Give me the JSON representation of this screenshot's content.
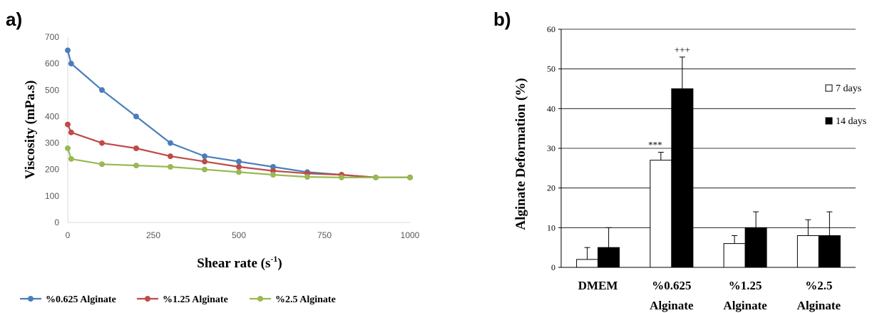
{
  "chart_data": [
    {
      "panel_label": "a)",
      "type": "line",
      "xlabel": "Shear rate (s",
      "xlabel_sup": "-1",
      "xlabel_tail": ")",
      "ylabel": "Viscosity (mPa.s)",
      "xlim": [
        0,
        1000
      ],
      "ylim": [
        0,
        700
      ],
      "x_ticks": [
        "0",
        "250",
        "500",
        "750",
        "1000"
      ],
      "y_ticks": [
        "0",
        "100",
        "200",
        "300",
        "400",
        "500",
        "600",
        "700"
      ],
      "grid": false,
      "legend_position": "bottom",
      "series": [
        {
          "name": "%0.625 Alginate",
          "color": "#4a7ebb",
          "x": [
            0,
            10,
            100,
            200,
            300,
            400,
            500,
            600,
            700,
            800,
            900,
            1000
          ],
          "y": [
            650,
            600,
            500,
            400,
            300,
            250,
            230,
            210,
            190,
            180,
            170,
            170
          ]
        },
        {
          "name": "%1.25 Alginate",
          "color": "#be4b48",
          "x": [
            0,
            10,
            100,
            200,
            300,
            400,
            500,
            600,
            700,
            800,
            900,
            1000
          ],
          "y": [
            370,
            340,
            300,
            280,
            250,
            230,
            210,
            195,
            185,
            180,
            170,
            170
          ]
        },
        {
          "name": "%2.5 Alginate",
          "color": "#98b954",
          "x": [
            0,
            10,
            100,
            200,
            300,
            400,
            500,
            600,
            700,
            800,
            900,
            1000
          ],
          "y": [
            280,
            240,
            220,
            215,
            210,
            200,
            190,
            180,
            172,
            170,
            170,
            170
          ]
        }
      ]
    },
    {
      "panel_label": "b)",
      "type": "bar",
      "ylabel": "Alginate  Deformation (%)",
      "ylim": [
        0,
        60
      ],
      "y_ticks": [
        "0",
        "10",
        "20",
        "30",
        "40",
        "50",
        "60"
      ],
      "grid": true,
      "legend_position": "right",
      "categories": [
        [
          "DMEM"
        ],
        [
          "%0.625",
          "Alginate"
        ],
        [
          "%1.25",
          "Alginate"
        ],
        [
          "%2.5",
          "Alginate"
        ]
      ],
      "series": [
        {
          "name": "7 days",
          "fill": "#ffffff",
          "values": [
            2,
            27,
            6,
            8
          ],
          "errors": [
            3,
            2,
            2,
            4
          ]
        },
        {
          "name": "14 days",
          "fill": "#000000",
          "values": [
            5,
            45,
            10,
            8
          ],
          "errors": [
            5,
            8,
            4,
            6
          ]
        }
      ],
      "annotations": [
        {
          "text": "***",
          "category": 1,
          "series": 0
        },
        {
          "text": "+++",
          "category": 1,
          "series": 1
        }
      ]
    }
  ]
}
